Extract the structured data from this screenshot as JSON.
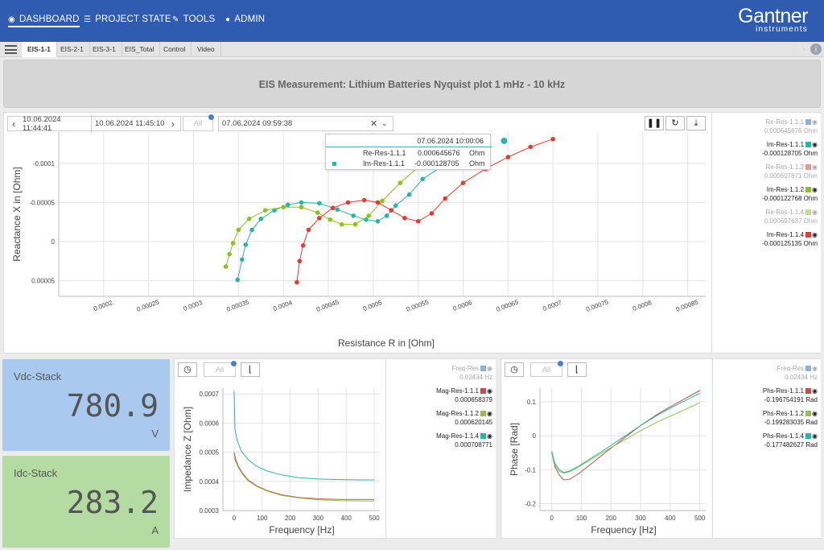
{
  "nav": {
    "items": [
      {
        "label": "DASHBOARD",
        "icon": "dashboard-icon"
      },
      {
        "label": "PROJECT STATE",
        "icon": "list-icon"
      },
      {
        "label": "TOOLS",
        "icon": "wrench-icon"
      },
      {
        "label": "ADMIN",
        "icon": "user-icon"
      }
    ],
    "brand_name": "Gantner",
    "brand_sub": "instruments"
  },
  "tabs": [
    "EIS-1-1",
    "EIS-2-1",
    "EIS-3-1",
    "EIS_Total",
    "Control",
    "Video"
  ],
  "banner": {
    "title": "EIS Measurement: Lithium Batteries Nyquist plot 1 mHz - 10 kHz"
  },
  "nyquist": {
    "time_from": "10.06.2024 11:44:41",
    "time_to": "10.06.2024 11:45:10",
    "filter_placeholder": "All",
    "select_value": "07.06.2024 09:59:38",
    "tooltip": {
      "time": "07.06.2024 10:00:06",
      "rows": [
        {
          "name": "Re-Res-1.1.1",
          "value": "0.000645676",
          "unit": "Ohm"
        },
        {
          "name": "Im-Res-1.1.1",
          "value": "-0.000128705",
          "unit": "Ohm"
        }
      ]
    },
    "legend": [
      {
        "name": "Re-Res-1.1.1",
        "value": "0.000645676 Ohm",
        "color": "#8fb0dd",
        "dim": true
      },
      {
        "name": "Im-Res-1.1.1",
        "value": "-0.000128705 Ohm",
        "color": "#2bb3a8",
        "dim": false
      },
      {
        "name": "Re-Res-1.1.2",
        "value": "0.000607871 Ohm",
        "color": "#e29a92",
        "dim": true
      },
      {
        "name": "Im-Res-1.1.2",
        "value": "-0.000122768 Ohm",
        "color": "#8cc21c",
        "dim": false
      },
      {
        "name": "Re-Res-1.1.4",
        "value": "0.000697637 Ohm",
        "color": "#bedc96",
        "dim": true
      },
      {
        "name": "Im-Res-1.1.4",
        "value": "-0.000125135 Ohm",
        "color": "#e03c31",
        "dim": false
      }
    ]
  },
  "kpis": [
    {
      "label": "Vdc-Stack",
      "value": "780.9",
      "unit": "V",
      "color": "#a9c9ee"
    },
    {
      "label": "Idc-Stack",
      "value": "283.2",
      "unit": "A",
      "color": "#b4dba2"
    }
  ],
  "impedance_panel": {
    "filter_placeholder": "All",
    "legend": [
      {
        "name": "Freq-Res",
        "value": "0.02434 Hz",
        "color": "#8fb0dd",
        "dim": true
      },
      {
        "name": "Mag-Res-1.1.1",
        "value": "0.000658379",
        "color": "#c0504d",
        "dim": false
      },
      {
        "name": "Mag-Res-1.1.2",
        "value": "0.000620145",
        "color": "#9bbb59",
        "dim": false
      },
      {
        "name": "Mag-Res-1.1.4",
        "value": "0.000708771",
        "color": "#2bb3a8",
        "dim": false
      }
    ]
  },
  "phase_panel": {
    "filter_placeholder": "All",
    "legend": [
      {
        "name": "Freq-Res",
        "value": "0.02434 Hz",
        "color": "#8fb0dd",
        "dim": true
      },
      {
        "name": "Phs-Res-1.1.1",
        "value": "-0.196754191 Rad",
        "color": "#c0504d",
        "dim": false
      },
      {
        "name": "Phs-Res-1.1.2",
        "value": "-0.199283035 Rad",
        "color": "#9bbb59",
        "dim": false
      },
      {
        "name": "Phs-Res-1.1.4",
        "value": "-0.177482627 Rad",
        "color": "#2bb3a8",
        "dim": false
      }
    ]
  },
  "chart_data": [
    {
      "type": "scatter",
      "xlabel": "Resistance R in [Ohm]",
      "ylabel": "Reactance X in [Ohm]",
      "xlim": [
        0.00015,
        0.00087
      ],
      "ylim": [
        7e-05,
        -0.00014
      ],
      "y_inverted": true,
      "xticks": [
        "0.0002",
        "0.00025",
        "0.0003",
        "0.00035",
        "0.0004",
        "0.00045",
        "0.0005",
        "0.00055",
        "0.0006",
        "0.00065",
        "0.0007",
        "0.00075",
        "0.0008",
        "0.00085"
      ],
      "yticks": [
        "-0.0001",
        "-0.00005",
        "0",
        "0.00005"
      ],
      "grid": true,
      "series": [
        {
          "color": "#2bb3a8",
          "x": [
            0.000349,
            0.000354,
            0.000358,
            0.000365,
            0.000375,
            0.00039,
            0.000405,
            0.00042,
            0.00044,
            0.00046,
            0.000478,
            0.000492,
            0.000505,
            0.000515,
            0.000525,
            0.00054,
            0.000555,
            0.000575
          ],
          "y": [
            4.9e-05,
            2.3e-05,
            4e-06,
            -1.5e-05,
            -2.9e-05,
            -4e-05,
            -4.7e-05,
            -5e-05,
            -4.9e-05,
            -4.1e-05,
            -3.3e-05,
            -2.8e-05,
            -2.6e-05,
            -3.3e-05,
            -4.6e-05,
            -6e-05,
            -8e-05,
            -9.5e-05
          ]
        },
        {
          "color": "#8cc21c",
          "x": [
            0.000336,
            0.00034,
            0.000344,
            0.00035,
            0.000362,
            0.00038,
            0.0004,
            0.00042,
            0.000438,
            0.000452,
            0.000465,
            0.00048,
            0.000495,
            0.00051,
            0.00053,
            0.00055
          ],
          "y": [
            3.2e-05,
            1.6e-05,
            2e-06,
            -1.5e-05,
            -2.9e-05,
            -4e-05,
            -4.4e-05,
            -4.4e-05,
            -3.7e-05,
            -2.8e-05,
            -2.2e-05,
            -2.2e-05,
            -3.3e-05,
            -5.2e-05,
            -7.5e-05,
            -9.5e-05
          ]
        },
        {
          "color": "#e03c31",
          "x": [
            0.000415,
            0.000418,
            0.000422,
            0.000428,
            0.00044,
            0.000455,
            0.000472,
            0.00049,
            0.000505,
            0.00052,
            0.000535,
            0.00055,
            0.000565,
            0.00058,
            0.0006,
            0.000625,
            0.00065,
            0.000675,
            0.0007
          ],
          "y": [
            5.2e-05,
            2.5e-05,
            5e-06,
            -1.5e-05,
            -3e-05,
            -4.3e-05,
            -5e-05,
            -5.3e-05,
            -5e-05,
            -4e-05,
            -3e-05,
            -2.6e-05,
            -3.6e-05,
            -5.5e-05,
            -7.5e-05,
            -9.3e-05,
            -0.000108,
            -0.000121,
            -0.000131
          ]
        }
      ]
    },
    {
      "type": "line",
      "xlabel": "Frequency [Hz]",
      "ylabel": "Impedance Z [Ohm]",
      "xlim": [
        -40,
        520
      ],
      "ylim": [
        0.0003,
        0.00072
      ],
      "xticks": [
        "0",
        "100",
        "200",
        "300",
        "400",
        "500"
      ],
      "yticks": [
        "0.0003",
        "0.0004",
        "0.0005",
        "0.0006",
        "0.0007"
      ],
      "grid": true,
      "series": [
        {
          "color": "#c0504d",
          "x": [
            0,
            5,
            15,
            30,
            50,
            80,
            120,
            170,
            230,
            300,
            380,
            460,
            500
          ],
          "y": [
            0.0005,
            0.000478,
            0.000452,
            0.000428,
            0.000405,
            0.000385,
            0.000368,
            0.000354,
            0.000345,
            0.00034,
            0.000338,
            0.000338,
            0.000338
          ]
        },
        {
          "color": "#9bbb59",
          "x": [
            0,
            5,
            15,
            30,
            50,
            80,
            120,
            170,
            230,
            300,
            380,
            460,
            500
          ],
          "y": [
            0.000485,
            0.000468,
            0.000447,
            0.000424,
            0.000402,
            0.000383,
            0.000366,
            0.000352,
            0.000343,
            0.000337,
            0.000334,
            0.000333,
            0.000333
          ]
        },
        {
          "color": "#2bb3a8",
          "x": [
            0,
            3,
            10,
            25,
            50,
            80,
            120,
            170,
            230,
            300,
            380,
            460,
            500
          ],
          "y": [
            0.00071,
            0.00058,
            0.000545,
            0.000505,
            0.000475,
            0.000452,
            0.000435,
            0.000422,
            0.000413,
            0.000408,
            0.000406,
            0.000405,
            0.000405
          ]
        }
      ]
    },
    {
      "type": "line",
      "xlabel": "Frequency [Hz]",
      "ylabel": "Phase [Rad]",
      "xlim": [
        -40,
        520
      ],
      "ylim": [
        -0.22,
        0.14
      ],
      "xticks": [
        "0",
        "100",
        "200",
        "300",
        "400",
        "500"
      ],
      "yticks": [
        "0.1",
        "0",
        "-0.1",
        "-0.2"
      ],
      "grid": true,
      "series": [
        {
          "color": "#c0504d",
          "x": [
            0,
            10,
            25,
            40,
            60,
            90,
            130,
            180,
            240,
            300,
            360,
            420,
            500
          ],
          "y": [
            -0.05,
            -0.09,
            -0.115,
            -0.13,
            -0.128,
            -0.112,
            -0.085,
            -0.05,
            -0.01,
            0.03,
            0.065,
            0.095,
            0.133
          ]
        },
        {
          "color": "#9bbb59",
          "x": [
            0,
            10,
            25,
            40,
            60,
            90,
            130,
            180,
            240,
            300,
            360,
            420,
            500
          ],
          "y": [
            -0.05,
            -0.085,
            -0.105,
            -0.11,
            -0.106,
            -0.092,
            -0.072,
            -0.045,
            -0.015,
            0.015,
            0.042,
            0.065,
            0.097
          ]
        },
        {
          "color": "#2bb3a8",
          "x": [
            0,
            10,
            25,
            40,
            60,
            90,
            130,
            180,
            240,
            300,
            360,
            420,
            500
          ],
          "y": [
            -0.045,
            -0.08,
            -0.1,
            -0.108,
            -0.104,
            -0.09,
            -0.068,
            -0.04,
            -0.005,
            0.03,
            0.062,
            0.09,
            0.125
          ]
        }
      ]
    }
  ]
}
